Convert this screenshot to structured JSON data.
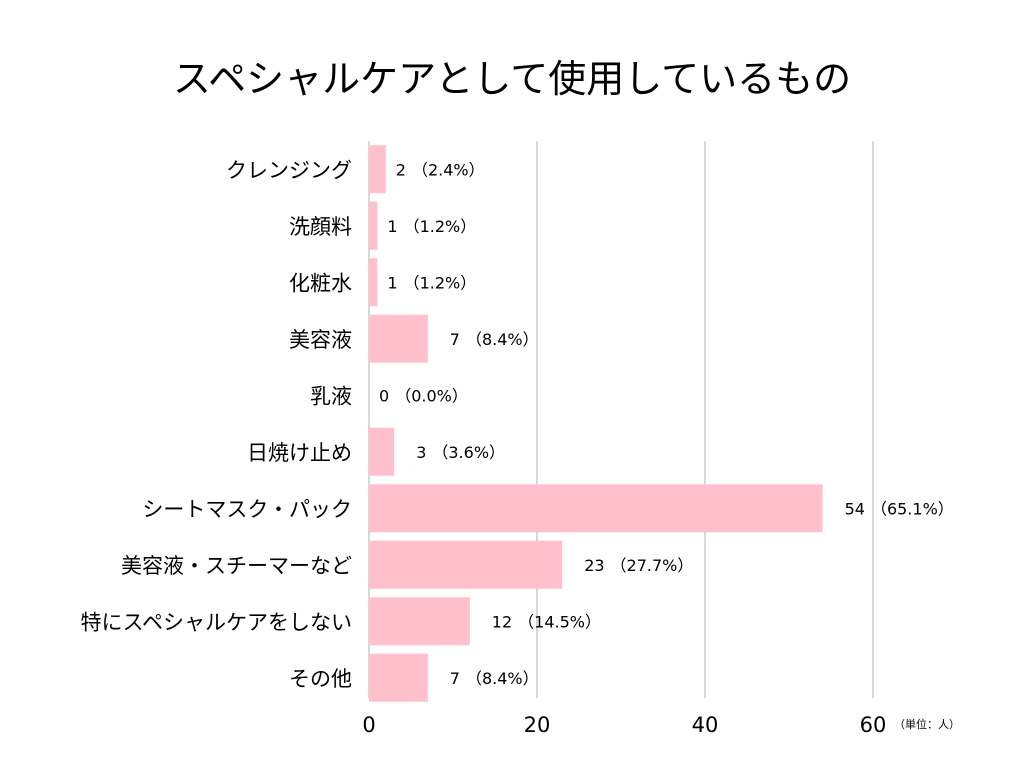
{
  "chart_data": {
    "type": "bar",
    "orientation": "horizontal",
    "title": "スペシャルケアとして使用しているもの",
    "unit_note": "（単位：人）",
    "categories": [
      "クレンジング",
      "洗顔料",
      "化粧水",
      "美容液",
      "乳液",
      "日焼け止め",
      "シートマスク・パック",
      "美容液・スチーマーなど",
      "特にスペシャルケアをしない",
      "その他"
    ],
    "values": [
      2,
      1,
      1,
      7,
      0,
      3,
      54,
      23,
      12,
      7
    ],
    "percents": [
      "（2.4%）",
      "（1.2%）",
      "（1.2%）",
      "（8.4%）",
      "（0.0%）",
      "（3.6%）",
      "（65.1%）",
      "（27.7%）",
      "（14.5%）",
      "（8.4%）"
    ],
    "xlim": [
      0,
      60
    ],
    "xticks": [
      0,
      20,
      40,
      60
    ],
    "grid": true,
    "legend": "none",
    "bar_color": "#ffc0cb",
    "grid_color": "#cccccc"
  }
}
